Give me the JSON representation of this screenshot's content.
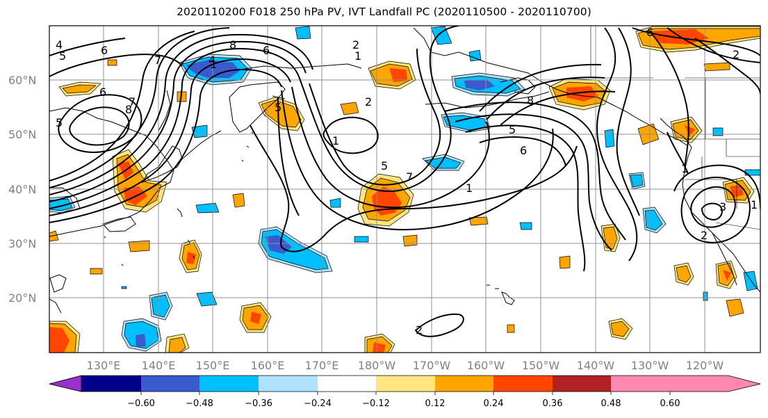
{
  "title": "2020110200 F018 250 hPa PV, IVT Landfall PC (2020110500 - 2020110700)",
  "latitude_labels": [
    "20°N",
    "30°N",
    "40°N",
    "50°N",
    "60°N"
  ],
  "longitude_labels": [
    "130°E",
    "140°E",
    "150°E",
    "160°E",
    "170°E",
    "180°W",
    "170°W",
    "160°W",
    "150°W",
    "140°W",
    "130°W",
    "120°W"
  ],
  "colorbar": {
    "tick_labels": [
      "−0.60",
      "−0.48",
      "−0.36",
      "−0.24",
      "−0.12",
      "0.12",
      "0.24",
      "0.36",
      "0.48",
      "0.60"
    ],
    "colors": [
      "#9b30d0",
      "#00008b",
      "#3a5bd0",
      "#00bfff",
      "#b0e2ff",
      "#ffffff",
      "#ffe680",
      "#ffa500",
      "#ff4500",
      "#b22222",
      "#ff88b0"
    ]
  },
  "pv_contour_labels": [
    "4",
    "5",
    "6",
    "7",
    "8",
    "2",
    "1",
    "5",
    "6",
    "8",
    "7",
    "1",
    "2",
    "4",
    "5",
    "6",
    "7",
    "8",
    "5",
    "1",
    "6",
    "2",
    "1",
    "2",
    "6",
    "5",
    "1",
    "3",
    "2",
    "1"
  ]
}
